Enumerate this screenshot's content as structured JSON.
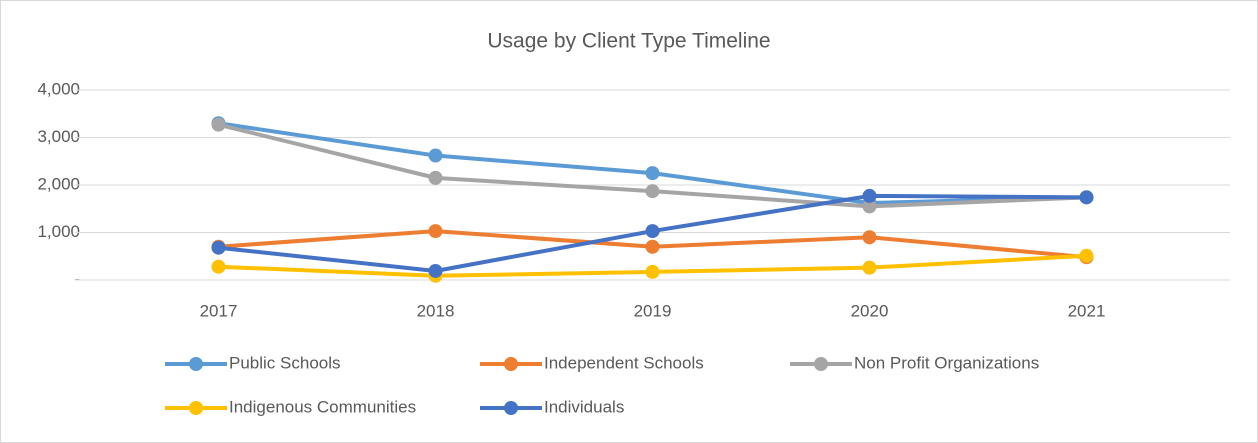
{
  "chart_data": {
    "type": "line",
    "title": "Usage by Client Type Timeline",
    "categories": [
      "2017",
      "2018",
      "2019",
      "2020",
      "2021"
    ],
    "series": [
      {
        "name": "Public Schools",
        "color": "#5b9bd5",
        "values": [
          3300,
          2620,
          2250,
          1620,
          1740
        ]
      },
      {
        "name": "Independent Schools",
        "color": "#ed7d31",
        "values": [
          700,
          1030,
          700,
          900,
          480
        ]
      },
      {
        "name": "Non Profit Organizations",
        "color": "#a5a5a5",
        "values": [
          3270,
          2150,
          1870,
          1550,
          1740
        ]
      },
      {
        "name": "Indigenous Communities",
        "color": "#ffc000",
        "values": [
          280,
          90,
          170,
          260,
          510
        ]
      },
      {
        "name": "Individuals",
        "color": "#4472c4",
        "values": [
          680,
          190,
          1030,
          1770,
          1740
        ]
      }
    ],
    "ylim": [
      0,
      4000
    ],
    "yticks": [
      {
        "value": 0,
        "label": "-"
      },
      {
        "value": 1000,
        "label": "1,000"
      },
      {
        "value": 2000,
        "label": "2,000"
      },
      {
        "value": 3000,
        "label": "3,000"
      },
      {
        "value": 4000,
        "label": "4,000"
      }
    ],
    "grid": true,
    "legend": "bottom"
  }
}
